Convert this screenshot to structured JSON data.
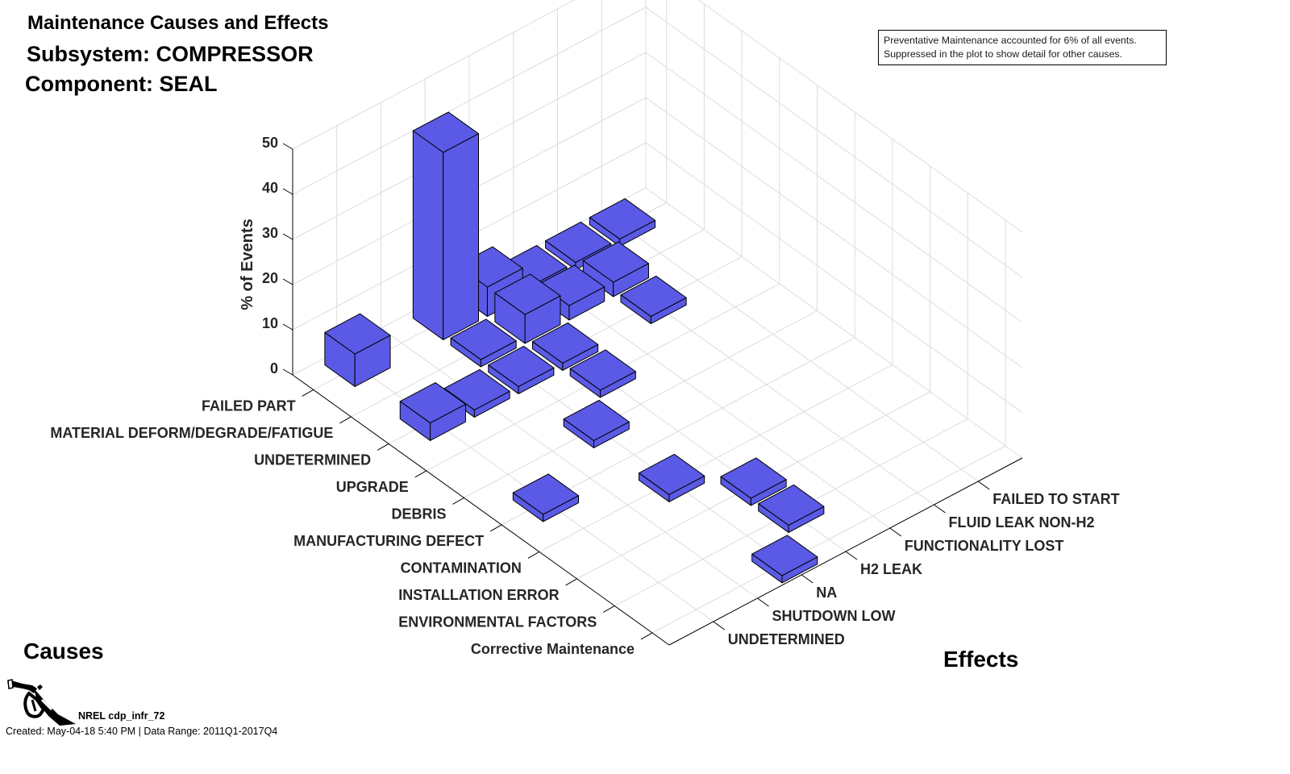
{
  "titles": {
    "line1": "Maintenance Causes and Effects",
    "line2": "Subsystem: COMPRESSOR",
    "line3": "Component: SEAL"
  },
  "annotation": {
    "line1": "Preventative Maintenance accounted for 6% of all events.",
    "line2": "Suppressed in the plot to show detail for other causes."
  },
  "axis_group_labels": {
    "causes": "Causes",
    "effects": "Effects"
  },
  "footer": {
    "logo_icon": "fuel-nozzle-icon",
    "id": "NREL cdp_infr_72",
    "created": "Created: May-04-18  5:40 PM | Data Range: 2011Q1-2017Q4"
  },
  "colors": {
    "bar": "#5A5AE6",
    "bar_edge": "#000000",
    "grid": "#DCDCDC",
    "axis": "#000000",
    "tick_label": "#262626"
  },
  "chart_data": {
    "type": "bar3d",
    "title": "Maintenance Causes and Effects",
    "subtitle": [
      "Subsystem: COMPRESSOR",
      "Component: SEAL"
    ],
    "zlabel": "% of Events",
    "xlabel": "Causes",
    "ylabel": "Effects",
    "zlim": [
      0,
      50
    ],
    "zticks": [
      0,
      10,
      20,
      30,
      40,
      50
    ],
    "grid": true,
    "causes": [
      "FAILED PART",
      "MATERIAL DEFORM/DEGRADE/FATIGUE",
      "UNDETERMINED",
      "UPGRADE",
      "DEBRIS",
      "MANUFACTURING DEFECT",
      "CONTAMINATION",
      "INSTALLATION ERROR",
      "ENVIRONMENTAL FACTORS",
      "Corrective Maintenance"
    ],
    "effects": [
      "UNDETERMINED",
      "SHUTDOWN LOW",
      "NA",
      "H2 LEAK",
      "FUNCTIONALITY LOST",
      "FLUID LEAK NON-H2",
      "FAILED TO START"
    ],
    "values": [
      [
        7.2,
        0,
        41.5,
        6.5,
        1.6,
        1.6,
        1.6
      ],
      [
        0,
        0,
        1.6,
        6.4,
        3.2,
        3.2,
        0
      ],
      [
        3.9,
        1.6,
        1.6,
        1.6,
        0,
        1.6,
        0
      ],
      [
        0,
        0,
        0,
        1.6,
        0,
        0,
        0
      ],
      [
        0,
        0,
        1.6,
        0,
        0,
        0,
        0
      ],
      [
        1.6,
        0,
        0,
        0,
        0,
        0,
        0
      ],
      [
        0,
        0,
        1.6,
        0,
        0,
        0,
        0
      ],
      [
        0,
        0,
        0,
        1.6,
        0,
        0,
        0
      ],
      [
        0,
        0,
        0,
        1.6,
        0,
        0,
        0
      ],
      [
        0,
        0,
        1.6,
        0,
        0,
        0,
        0
      ]
    ],
    "annotation": "Preventative Maintenance accounted for 6% of all events. Suppressed in the plot to show detail for other causes."
  }
}
